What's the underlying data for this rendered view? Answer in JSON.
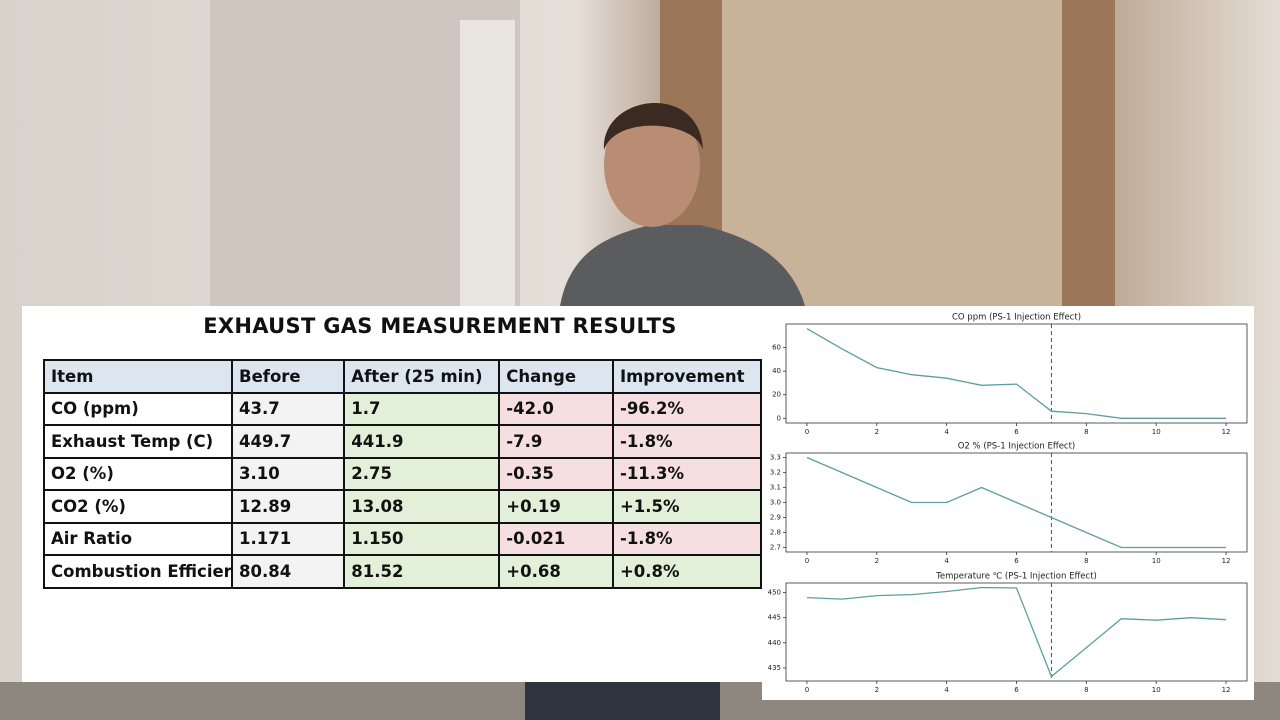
{
  "table": {
    "title": "EXHAUST GAS MEASUREMENT RESULTS",
    "header": [
      "Item",
      "Before",
      "After (25 min)",
      "Change",
      "Improvement"
    ],
    "rows": [
      [
        "CO (ppm)",
        "43.7",
        "1.7",
        "-42.0",
        "-96.2%"
      ],
      [
        "Exhaust Temp (C)",
        "449.7",
        "441.9",
        "-7.9",
        "-1.8%"
      ],
      [
        "O2 (%)",
        "3.10",
        "2.75",
        "-0.35",
        "-11.3%"
      ],
      [
        "CO2 (%)",
        "12.89",
        "13.08",
        "+0.19",
        "+1.5%"
      ],
      [
        "Air Ratio",
        "1.171",
        "1.150",
        "-0.021",
        "-1.8%"
      ],
      [
        "Combustion Efficier",
        "80.84",
        "81.52",
        "+0.68",
        "+0.8%"
      ]
    ]
  },
  "chart_data": [
    {
      "type": "line",
      "title": "CO ppm (PS-1 Injection Effect)",
      "color": "#5f9ea0",
      "x": [
        0,
        1,
        2,
        3,
        4,
        5,
        6,
        7,
        8,
        9,
        10,
        11,
        12
      ],
      "values": [
        76,
        59,
        43,
        37,
        34,
        28,
        29,
        6,
        4,
        0,
        0,
        0,
        0
      ],
      "xlim": [
        -0.6,
        12.6
      ],
      "xticks": [
        0,
        2,
        4,
        6,
        8,
        10,
        12
      ],
      "ylim": [
        -4,
        80
      ],
      "yticks": [
        0,
        20,
        40,
        60
      ],
      "vline": 7
    },
    {
      "type": "line",
      "title": "O2 % (PS-1 Injection Effect)",
      "color": "#5f9ea0",
      "x": [
        0,
        1,
        2,
        3,
        4,
        5,
        6,
        7,
        8,
        9,
        10,
        11,
        12
      ],
      "values": [
        3.3,
        3.2,
        3.1,
        3.0,
        3.0,
        3.1,
        3.0,
        2.9,
        2.8,
        2.7,
        2.7,
        2.7,
        2.7
      ],
      "xlim": [
        -0.6,
        12.6
      ],
      "xticks": [
        0,
        2,
        4,
        6,
        8,
        10,
        12
      ],
      "ylim": [
        2.67,
        3.33
      ],
      "yticks": [
        2.7,
        2.8,
        2.9,
        {
          "value": 3,
          "label": "3.0"
        },
        3.1,
        3.2,
        3.3
      ],
      "vline": 7
    },
    {
      "type": "line",
      "title": "Temperature ℃ (PS-1 Injection Effect)",
      "color": "#5f9ea0",
      "x": [
        0,
        1,
        2,
        3,
        4,
        5,
        6,
        7,
        8,
        9,
        10,
        11,
        12
      ],
      "values": [
        449,
        448.7,
        449.4,
        449.6,
        450.2,
        451,
        450.9,
        433.3,
        439,
        444.8,
        444.5,
        445,
        444.6
      ],
      "xlim": [
        -0.6,
        12.6
      ],
      "xticks": [
        0,
        2,
        4,
        6,
        8,
        10,
        12
      ],
      "ylim": [
        432.4,
        451.9
      ],
      "yticks": [
        435,
        440,
        445,
        450
      ],
      "vline": 7
    }
  ]
}
